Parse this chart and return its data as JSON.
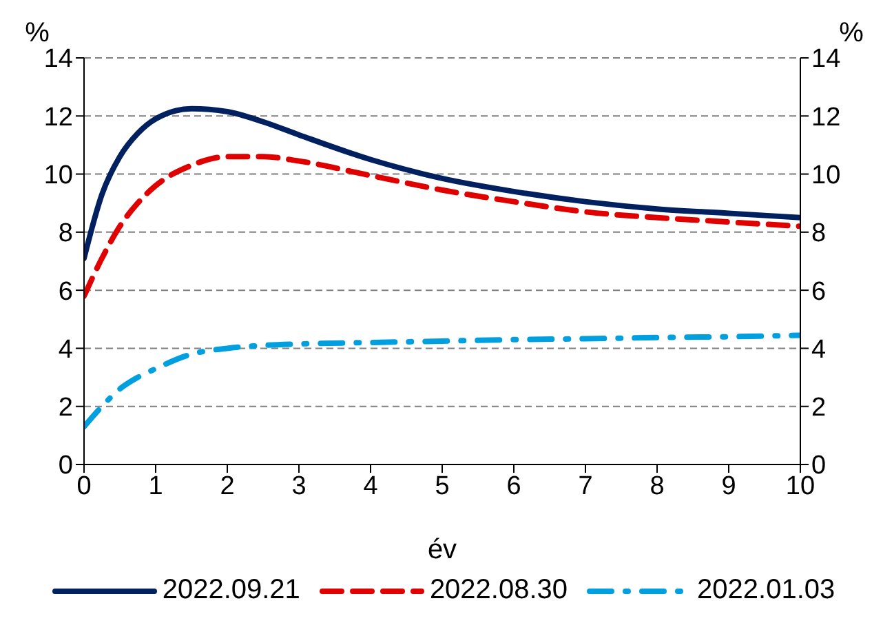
{
  "chart_data": {
    "type": "line",
    "xlabel": "év",
    "ylabel": "%",
    "y2label": "%",
    "x": [
      0,
      0.25,
      0.5,
      0.75,
      1,
      1.5,
      2,
      2.5,
      3,
      4,
      5,
      6,
      7,
      8,
      9,
      10
    ],
    "series": [
      {
        "name": "2022.09.21",
        "color": "#002060",
        "line_style": "solid",
        "values": [
          7.1,
          9.3,
          10.6,
          11.4,
          11.9,
          12.25,
          12.15,
          11.8,
          11.35,
          10.5,
          9.85,
          9.4,
          9.05,
          8.8,
          8.65,
          8.5
        ]
      },
      {
        "name": "2022.08.30",
        "color": "#e00000",
        "line_style": "dashed",
        "values": [
          5.8,
          7.1,
          8.2,
          9.0,
          9.6,
          10.3,
          10.6,
          10.6,
          10.45,
          9.95,
          9.45,
          9.05,
          8.7,
          8.5,
          8.35,
          8.2
        ]
      },
      {
        "name": "2022.01.03",
        "color": "#00a0e0",
        "line_style": "dashdot",
        "values": [
          1.3,
          2.0,
          2.6,
          3.0,
          3.3,
          3.8,
          4.0,
          4.1,
          4.15,
          4.2,
          4.25,
          4.3,
          4.33,
          4.37,
          4.4,
          4.45
        ]
      }
    ],
    "xlim": [
      0,
      10
    ],
    "xticks": [
      0,
      1,
      2,
      3,
      4,
      5,
      6,
      7,
      8,
      9,
      10
    ],
    "ylim": [
      0,
      14
    ],
    "yticks": [
      0,
      2,
      4,
      6,
      8,
      10,
      12,
      14
    ],
    "y2lim": [
      0,
      14
    ],
    "y2ticks": [
      0,
      2,
      4,
      6,
      8,
      10,
      12,
      14
    ],
    "grid": "y",
    "legend": "bottom",
    "marker": "none"
  }
}
